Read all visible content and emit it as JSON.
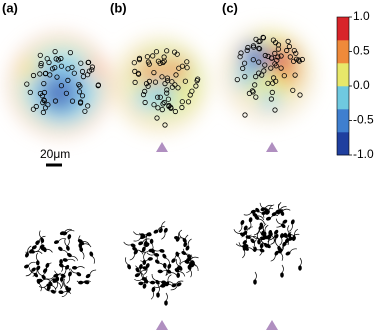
{
  "panels": [
    {
      "label": "(a)"
    },
    {
      "label": "(b)"
    },
    {
      "label": "(c)"
    }
  ],
  "scale_bar": "20μm",
  "colorbar": {
    "lim": [
      -1,
      1
    ],
    "ticks": [
      {
        "value": 1,
        "label": "1.0"
      },
      0.5,
      {
        "value": 0,
        "label": "0.0"
      },
      -0.5,
      {
        "value": -1,
        "label": "-1.0"
      }
    ],
    "colors": [
      "#1f3f9f",
      "#3f7fcf",
      "#6fc9e0",
      "#e8e86a",
      "#ef8a3a",
      "#d8242a"
    ]
  }
}
